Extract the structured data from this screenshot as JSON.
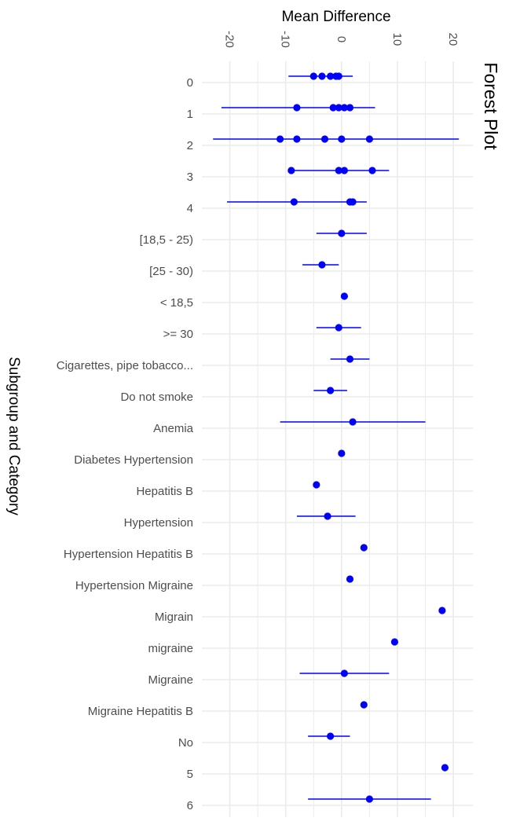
{
  "chart_data": {
    "type": "scatter",
    "title": "Forest Plot",
    "xlabel": "Mean Difference",
    "ylabel": "Subgroup and Category",
    "xlim": [
      -25,
      23.5
    ],
    "x_ticks": [
      -20,
      -10,
      0,
      10,
      20
    ],
    "x_tick_labels": [
      "-20",
      "-10",
      "0",
      "10",
      "20"
    ],
    "grid": true,
    "legend": "none",
    "colors": {
      "marker": "#0000ff",
      "interval": "#0000ff",
      "grid": "#ebebeb"
    },
    "categories": [
      "0",
      "1",
      "2",
      "3",
      "4",
      "[18,5 - 25)",
      "[25 - 30)",
      "< 18,5",
      ">= 30",
      "Cigarettes, pipe tobacco...",
      "Do not smoke",
      "Anemia",
      "Diabetes Hypertension",
      "Hepatitis B",
      "Hypertension",
      "Hypertension Hepatitis B",
      "Hypertension Migraine",
      "Migrain",
      "migraine",
      "Migraine",
      "Migraine Hepatitis B",
      "No",
      "5",
      "6"
    ],
    "estimates": [
      {
        "category": "0",
        "mean": -5.0,
        "lower": -9.5,
        "upper": 2.0
      },
      {
        "category": "0",
        "mean": -3.5,
        "lower": -3.5,
        "upper": -3.5
      },
      {
        "category": "0",
        "mean": -2.0,
        "lower": -2.0,
        "upper": -2.0
      },
      {
        "category": "0",
        "mean": -1.0,
        "lower": -1.0,
        "upper": -1.0
      },
      {
        "category": "0",
        "mean": -0.5,
        "lower": -0.5,
        "upper": -0.5
      },
      {
        "category": "1",
        "mean": -8.0,
        "lower": -21.5,
        "upper": 6.0
      },
      {
        "category": "1",
        "mean": -1.5,
        "lower": -1.5,
        "upper": -1.5
      },
      {
        "category": "1",
        "mean": -0.5,
        "lower": -0.5,
        "upper": -0.5
      },
      {
        "category": "1",
        "mean": 0.5,
        "lower": 0.5,
        "upper": 0.5
      },
      {
        "category": "1",
        "mean": 1.5,
        "lower": 1.5,
        "upper": 1.5
      },
      {
        "category": "2",
        "mean": -11.0,
        "lower": -23.0,
        "upper": 21.0
      },
      {
        "category": "2",
        "mean": -8.0,
        "lower": -8.0,
        "upper": -8.0
      },
      {
        "category": "2",
        "mean": -3.0,
        "lower": -3.0,
        "upper": -3.0
      },
      {
        "category": "2",
        "mean": 0.0,
        "lower": 0.0,
        "upper": 0.0
      },
      {
        "category": "2",
        "mean": 5.0,
        "lower": 5.0,
        "upper": 5.0
      },
      {
        "category": "3",
        "mean": -9.0,
        "lower": -9.0,
        "upper": 8.5
      },
      {
        "category": "3",
        "mean": -0.5,
        "lower": -0.5,
        "upper": -0.5
      },
      {
        "category": "3",
        "mean": 0.5,
        "lower": 0.5,
        "upper": 0.5
      },
      {
        "category": "3",
        "mean": 5.5,
        "lower": 5.5,
        "upper": 5.5
      },
      {
        "category": "4",
        "mean": -8.5,
        "lower": -20.5,
        "upper": 4.5
      },
      {
        "category": "4",
        "mean": 1.5,
        "lower": 1.5,
        "upper": 1.5
      },
      {
        "category": "4",
        "mean": 2.0,
        "lower": 2.0,
        "upper": 2.0
      },
      {
        "category": "[18,5 - 25)",
        "mean": 0.0,
        "lower": -4.5,
        "upper": 4.5
      },
      {
        "category": "[25 - 30)",
        "mean": -3.5,
        "lower": -7.0,
        "upper": -0.5
      },
      {
        "category": "< 18,5",
        "mean": 0.5,
        "lower": 0.5,
        "upper": 0.5
      },
      {
        "category": ">= 30",
        "mean": -0.5,
        "lower": -4.5,
        "upper": 3.5
      },
      {
        "category": "Cigarettes, pipe tobacco...",
        "mean": 1.5,
        "lower": -2.0,
        "upper": 5.0
      },
      {
        "category": "Do not smoke",
        "mean": -2.0,
        "lower": -5.0,
        "upper": 1.0
      },
      {
        "category": "Anemia",
        "mean": 2.0,
        "lower": -11.0,
        "upper": 15.0
      },
      {
        "category": "Diabetes Hypertension",
        "mean": 0.0,
        "lower": 0.0,
        "upper": 0.0
      },
      {
        "category": "Hepatitis B",
        "mean": -4.5,
        "lower": -4.5,
        "upper": -4.5
      },
      {
        "category": "Hypertension",
        "mean": -2.5,
        "lower": -8.0,
        "upper": 2.5
      },
      {
        "category": "Hypertension Hepatitis B",
        "mean": 4.0,
        "lower": 4.0,
        "upper": 4.0
      },
      {
        "category": "Hypertension Migraine",
        "mean": 1.5,
        "lower": 1.5,
        "upper": 1.5
      },
      {
        "category": "Migrain",
        "mean": 18.0,
        "lower": 18.0,
        "upper": 18.0
      },
      {
        "category": "migraine",
        "mean": 9.5,
        "lower": 9.5,
        "upper": 9.5
      },
      {
        "category": "Migraine",
        "mean": 0.5,
        "lower": -7.5,
        "upper": 8.5
      },
      {
        "category": "Migraine Hepatitis B",
        "mean": 4.0,
        "lower": 4.0,
        "upper": 4.0
      },
      {
        "category": "No",
        "mean": -2.0,
        "lower": -6.0,
        "upper": 1.5
      },
      {
        "category": "5",
        "mean": 18.5,
        "lower": 18.5,
        "upper": 18.5
      },
      {
        "category": "6",
        "mean": 5.0,
        "lower": -6.0,
        "upper": 16.0
      }
    ]
  }
}
